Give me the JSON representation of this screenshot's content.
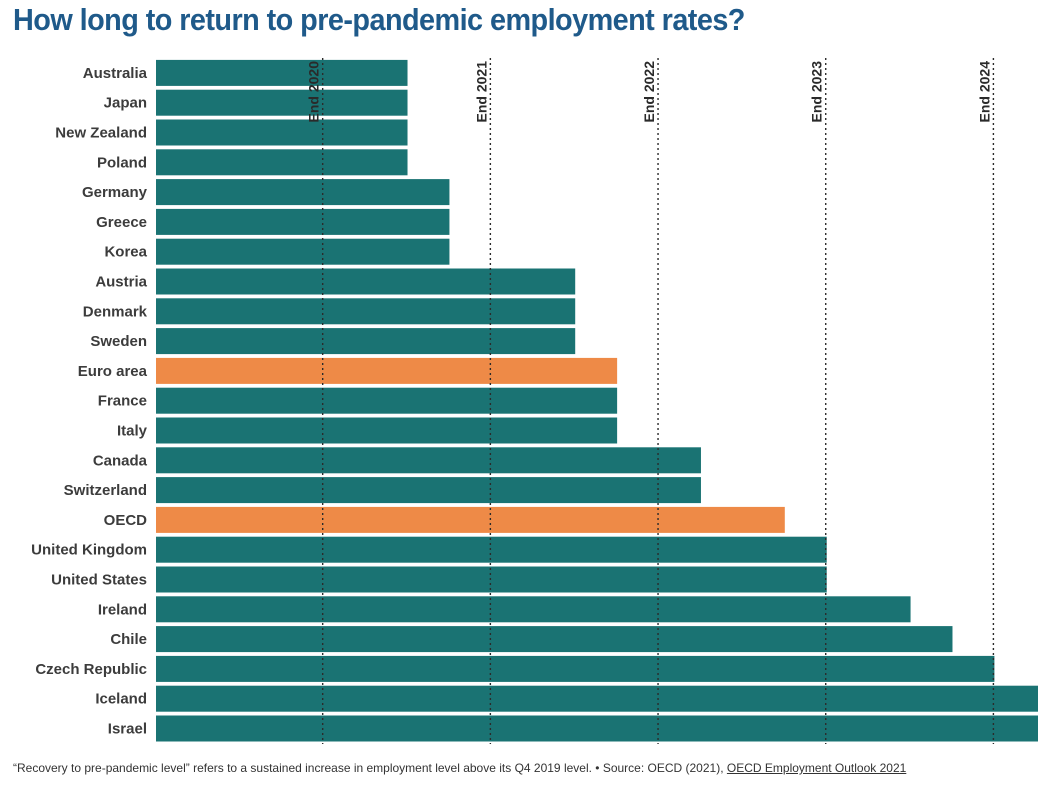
{
  "title": "How long to return to pre-pandemic employment rates?",
  "colors": {
    "bar": "#1a7373",
    "highlight": "#ee8a47",
    "title": "#1f5a8a"
  },
  "footer": {
    "note": "“Recovery to pre-pandemic level” refers to a sustained increase in employment level above its Q4 2019 level. • Source: OECD (2021),",
    "link_text": "OECD Employment Outlook 2021"
  },
  "chart_data": {
    "type": "bar",
    "orientation": "horizontal",
    "x_unit": "years after Q4 2019",
    "xlim": [
      0,
      5.26
    ],
    "categories": [
      "Australia",
      "Japan",
      "New Zealand",
      "Poland",
      "Germany",
      "Greece",
      "Korea",
      "Austria",
      "Denmark",
      "Sweden",
      "Euro area",
      "France",
      "Italy",
      "Canada",
      "Switzerland",
      "OECD",
      "United Kingdom",
      "United States",
      "Ireland",
      "Chile",
      "Czech Republic",
      "Iceland",
      "Israel"
    ],
    "values": [
      1.5,
      1.5,
      1.5,
      1.5,
      1.75,
      1.75,
      1.75,
      2.5,
      2.5,
      2.5,
      2.75,
      2.75,
      2.75,
      3.25,
      3.25,
      3.75,
      4.0,
      4.0,
      4.5,
      4.75,
      5.0,
      5.26,
      5.26
    ],
    "highlighted": [
      "Euro area",
      "OECD"
    ],
    "reference_lines": [
      {
        "label": "End 2020",
        "x": 1
      },
      {
        "label": "End 2021",
        "x": 2
      },
      {
        "label": "End 2022",
        "x": 3
      },
      {
        "label": "End 2023",
        "x": 4
      },
      {
        "label": "End 2024",
        "x": 5
      }
    ],
    "grid": false,
    "legend": "none"
  }
}
